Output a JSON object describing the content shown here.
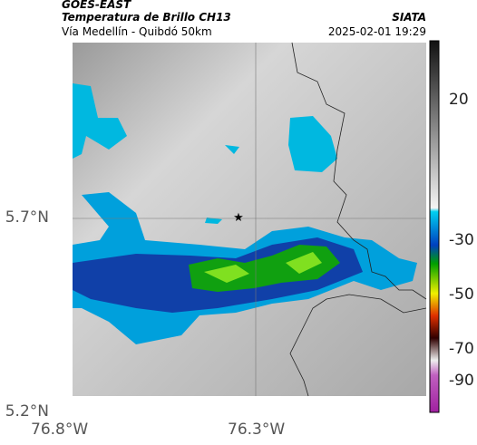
{
  "header": {
    "source": "GOES-EAST",
    "title": "Temperatura de Brillo CH13",
    "agency": "SIATA",
    "subtitle": "Vía Medellín - Quibdó 50km",
    "timestamp": "2025-02-01 19:29"
  },
  "map": {
    "lat_labels": [
      "5.7°N",
      "5.2°N"
    ],
    "lon_labels": [
      "76.8°W",
      "76.3°W"
    ]
  },
  "colorbar": {
    "labels": [
      "20",
      "-30",
      "-50",
      "-70",
      "-90"
    ]
  }
}
